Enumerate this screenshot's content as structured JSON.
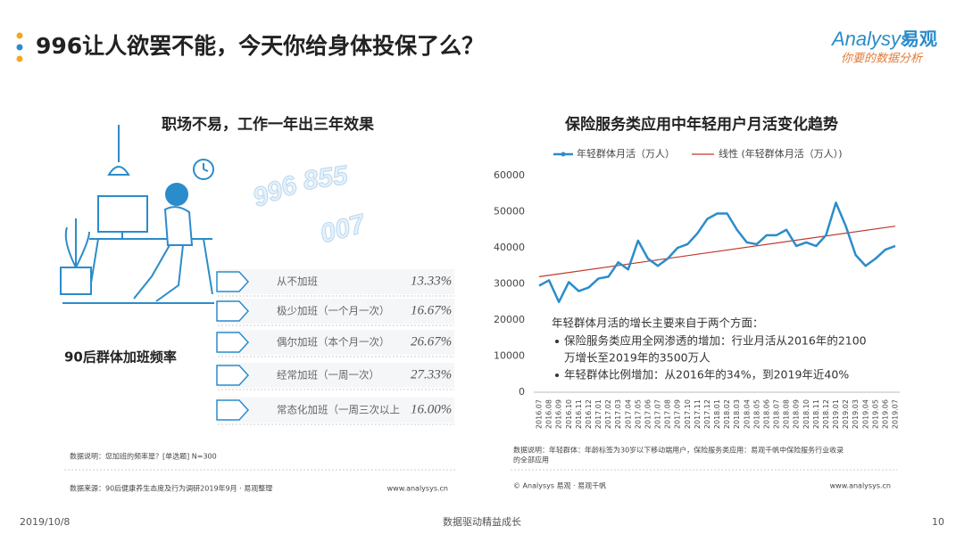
{
  "header": {
    "title": "996让人欲罢不能，今天你给身体投保了么？",
    "logo_brand": "Analysys",
    "logo_cn": "易观",
    "logo_sub": "你要的数据分析"
  },
  "left": {
    "title": "职场不易，工作一年出三年效果",
    "deco_numbers": [
      "996",
      "855",
      "007"
    ],
    "label": "90后群体加班频率",
    "items": [
      {
        "label": "从不加班",
        "value": "13.33%"
      },
      {
        "label": "极少加班（一个月一次）",
        "value": "16.67%"
      },
      {
        "label": "偶尔加班（本个月一次）",
        "value": "26.67%"
      },
      {
        "label": "经常加班（一周一次）",
        "value": "27.33%"
      },
      {
        "label": "常态化加班（一周三次以上",
        "value": "16.00%"
      }
    ],
    "note": "数据说明：您加班的频率是？[单选题] N=300",
    "source": "数据来源：90后健康养生态度及行为调研2019年9月 · 易观整理",
    "url": "www.analysys.cn"
  },
  "chart_data": {
    "type": "line",
    "title": "保险服务类应用中年轻用户月活变化趋势",
    "categories": [
      "2016.07",
      "2016.08",
      "2016.09",
      "2016.10",
      "2016.11",
      "2016.12",
      "2017.01",
      "2017.02",
      "2017.03",
      "2017.04",
      "2017.05",
      "2017.06",
      "2017.07",
      "2017.08",
      "2017.09",
      "2017.10",
      "2017.11",
      "2017.12",
      "2018.01",
      "2018.02",
      "2018.03",
      "2018.04",
      "2018.05",
      "2018.06",
      "2018.07",
      "2018.08",
      "2018.09",
      "2018.10",
      "2018.11",
      "2018.12",
      "2019.01",
      "2019.02",
      "2019.03",
      "2019.04",
      "2019.05",
      "2019.06",
      "2019.07"
    ],
    "series": [
      {
        "name": "年轻群体月活（万人）",
        "color": "#2b8ccb",
        "values": [
          29500,
          31000,
          25000,
          30500,
          28000,
          29000,
          31500,
          32000,
          36000,
          34000,
          42000,
          37000,
          35000,
          37000,
          40000,
          41000,
          44000,
          48000,
          49500,
          49500,
          45000,
          41500,
          41000,
          43500,
          43500,
          45000,
          40500,
          41500,
          40500,
          43500,
          52500,
          46000,
          38000,
          35000,
          37000,
          39500,
          40500
        ]
      }
    ],
    "trendline": {
      "name": "线性 (年轻群体月活（万人）)",
      "color": "#c0392b",
      "start": 32000,
      "end": 46000
    },
    "ylim": [
      0,
      60000
    ],
    "yticks": [
      0,
      10000,
      20000,
      30000,
      40000,
      50000,
      60000
    ],
    "grid": false,
    "annotation": {
      "title": "年轻群体月活的增长主要来自于两个方面：",
      "bullets": [
        [
          "保险服务类应用全网渗透的增加：行业月活从2016年的2100",
          "万增长至2019年的3500万人"
        ],
        [
          "年轻群体比例增加：从2016年的34%，到2019年近40%"
        ]
      ]
    },
    "note": [
      "数据说明：年轻群体：年龄标签为30岁以下移动端用户，保险服务类应用：易观千帆中保险服务行业收录",
      "的全部应用"
    ],
    "source": "© Analysys 易观 · 易观千帆",
    "url": "www.analysys.cn"
  },
  "footer": {
    "date": "2019/10/8",
    "slogan": "数据驱动精益成长",
    "page": "10"
  }
}
